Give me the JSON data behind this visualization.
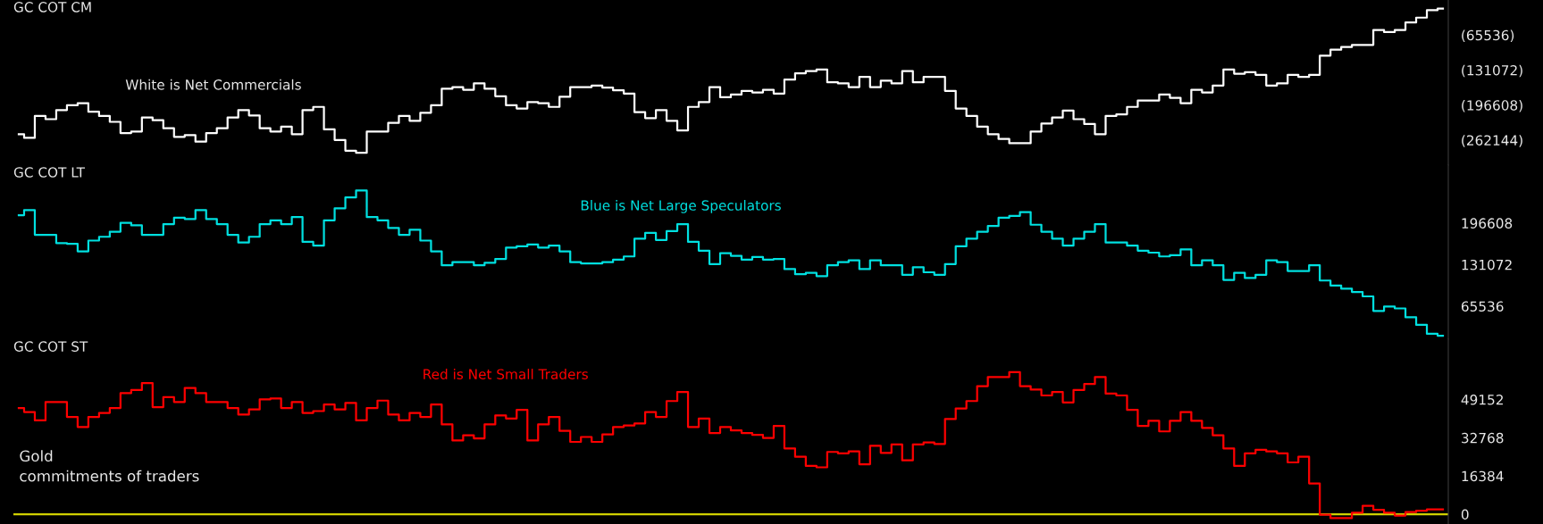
{
  "chart_data": [
    {
      "type": "step",
      "title": "GC COT CM",
      "annotations": [
        "White is Net Commercials"
      ],
      "tick_labels": "y",
      "ylim": [
        -309000,
        0
      ],
      "categories": [
        null,
        null,
        null,
        null,
        null,
        null,
        null,
        null,
        null,
        null,
        null,
        null,
        null,
        null,
        null,
        null,
        null,
        null,
        null,
        null,
        null,
        null,
        null,
        null,
        null,
        null,
        null,
        null,
        null,
        null,
        null,
        null,
        null,
        null,
        null,
        null,
        null,
        null,
        null,
        null,
        null,
        null,
        null,
        null,
        null,
        null,
        null,
        null,
        null,
        null,
        null,
        null,
        null,
        null,
        null,
        null,
        null,
        null,
        null,
        null,
        null,
        null,
        null,
        null,
        null,
        null,
        null,
        null,
        null,
        null,
        null,
        null,
        null,
        null,
        null,
        null,
        null,
        null,
        null,
        null,
        null,
        null,
        null,
        null,
        null,
        null,
        null,
        null,
        null,
        null,
        null,
        null,
        null,
        null,
        null,
        null,
        null,
        null,
        null,
        null,
        null,
        null,
        null,
        null,
        null,
        null,
        null,
        null,
        null,
        null,
        null,
        null,
        null,
        null,
        null,
        null,
        null,
        null,
        null,
        null,
        null,
        null,
        null,
        null,
        null,
        null,
        null,
        null,
        null,
        null,
        null,
        null,
        null,
        null
      ],
      "yticks": [
        {
          "value": -65536,
          "label": "(65536)"
        },
        {
          "value": -131072,
          "label": "(131072)"
        },
        {
          "value": -196608,
          "label": "(196608)"
        },
        {
          "value": -262144,
          "label": "(262144)"
        }
      ],
      "series": [
        {
          "color": "#ffffff",
          "values": [
            -251000,
            -258000,
            -217000,
            -223000,
            -206000,
            -197000,
            -193000,
            -209000,
            -217000,
            -228000,
            -249000,
            -246000,
            -220000,
            -225000,
            -240000,
            -256000,
            -253000,
            -265000,
            -249000,
            -240000,
            -220000,
            -206000,
            -216000,
            -240000,
            -246000,
            -237000,
            -251000,
            -206000,
            -200000,
            -242000,
            -262000,
            -282000,
            -286000,
            -246000,
            -246000,
            -230000,
            -217000,
            -226000,
            -211000,
            -197000,
            -166000,
            -163000,
            -168000,
            -156000,
            -166000,
            -180000,
            -197000,
            -203000,
            -191000,
            -193000,
            -200000,
            -181000,
            -163000,
            -163000,
            -160000,
            -164000,
            -169000,
            -175000,
            -210000,
            -221000,
            -206000,
            -226000,
            -244000,
            -200000,
            -191000,
            -163000,
            -182000,
            -177000,
            -170000,
            -173000,
            -168000,
            -175000,
            -149000,
            -137000,
            -133000,
            -130000,
            -154000,
            -156000,
            -163000,
            -144000,
            -163000,
            -151000,
            -156000,
            -133000,
            -154000,
            -144000,
            -144000,
            -170000,
            -203000,
            -217000,
            -237000,
            -251000,
            -260000,
            -268000,
            -268000,
            -246000,
            -231000,
            -220000,
            -207000,
            -223000,
            -232000,
            -251000,
            -217000,
            -214000,
            -200000,
            -188000,
            -188000,
            -177000,
            -183000,
            -193000,
            -168000,
            -173000,
            -160000,
            -130000,
            -138000,
            -135000,
            -140000,
            -160000,
            -156000,
            -140000,
            -144000,
            -140000,
            -104000,
            -93000,
            -88000,
            -84000,
            -84000,
            -56000,
            -60000,
            -56000,
            -42000,
            -33000,
            -19000,
            -16000
          ]
        }
      ]
    },
    {
      "type": "step",
      "title": "GC COT LT",
      "annotations": [
        "Blue is Net Large Speculators"
      ],
      "tick_labels": "y",
      "ylim": [
        13400,
        288000
      ],
      "categories": [
        null,
        null,
        null,
        null,
        null,
        null,
        null,
        null,
        null,
        null,
        null,
        null,
        null,
        null,
        null,
        null,
        null,
        null,
        null,
        null,
        null,
        null,
        null,
        null,
        null,
        null,
        null,
        null,
        null,
        null,
        null,
        null,
        null,
        null,
        null,
        null,
        null,
        null,
        null,
        null,
        null,
        null,
        null,
        null,
        null,
        null,
        null,
        null,
        null,
        null,
        null,
        null,
        null,
        null,
        null,
        null,
        null,
        null,
        null,
        null,
        null,
        null,
        null,
        null,
        null,
        null,
        null,
        null,
        null,
        null,
        null,
        null,
        null,
        null,
        null,
        null,
        null,
        null,
        null,
        null,
        null,
        null,
        null,
        null,
        null,
        null,
        null,
        null,
        null,
        null,
        null,
        null,
        null,
        null,
        null,
        null,
        null,
        null,
        null,
        null,
        null,
        null,
        null,
        null,
        null,
        null,
        null,
        null,
        null,
        null,
        null,
        null,
        null,
        null,
        null,
        null,
        null,
        null,
        null,
        null,
        null,
        null,
        null,
        null,
        null,
        null,
        null,
        null,
        null,
        null,
        null,
        null,
        null,
        null
      ],
      "yticks": [
        196608,
        131072,
        65536
      ],
      "series": [
        {
          "color": "#00e0e0",
          "values": [
            209000,
            217000,
            178000,
            178000,
            165000,
            164000,
            152000,
            169000,
            175000,
            183000,
            197000,
            193000,
            178000,
            178000,
            195000,
            205000,
            203000,
            217000,
            203000,
            195000,
            178000,
            166000,
            175000,
            195000,
            201000,
            195000,
            206000,
            167000,
            161000,
            201000,
            220000,
            237000,
            248000,
            206000,
            201000,
            189000,
            178000,
            186000,
            169000,
            152000,
            130000,
            135000,
            135000,
            130000,
            134000,
            140000,
            158000,
            160000,
            163000,
            158000,
            161000,
            152000,
            135000,
            133000,
            133000,
            135000,
            139000,
            144000,
            172000,
            181000,
            170000,
            184000,
            195000,
            167000,
            153000,
            132000,
            149000,
            145000,
            139000,
            143000,
            139000,
            140000,
            124000,
            116000,
            118000,
            113000,
            130000,
            135000,
            138000,
            124000,
            138000,
            130000,
            130000,
            115000,
            127000,
            119000,
            115000,
            132000,
            160000,
            172000,
            183000,
            192000,
            205000,
            208000,
            214000,
            194000,
            183000,
            172000,
            161000,
            172000,
            183000,
            195000,
            166000,
            166000,
            161000,
            153000,
            150000,
            144000,
            146000,
            155000,
            130000,
            138000,
            130000,
            107000,
            118000,
            110000,
            115000,
            138000,
            135000,
            121000,
            121000,
            130000,
            106000,
            98000,
            93000,
            88000,
            81000,
            58000,
            65000,
            62000,
            48000,
            36000,
            22000,
            19000
          ]
        }
      ]
    },
    {
      "type": "step",
      "title": "GC COT ST",
      "annotations": [
        "Red is Net Small Traders",
        "Gold\ncommitments of traders"
      ],
      "tick_labels": "y",
      "ylim": [
        -4200,
        75000
      ],
      "categories": [
        null,
        null,
        null,
        null,
        null,
        null,
        null,
        null,
        null,
        null,
        null,
        null,
        null,
        null,
        null,
        null,
        null,
        null,
        null,
        null,
        null,
        null,
        null,
        null,
        null,
        null,
        null,
        null,
        null,
        null,
        null,
        null,
        null,
        null,
        null,
        null,
        null,
        null,
        null,
        null,
        null,
        null,
        null,
        null,
        null,
        null,
        null,
        null,
        null,
        null,
        null,
        null,
        null,
        null,
        null,
        null,
        null,
        null,
        null,
        null,
        null,
        null,
        null,
        null,
        null,
        null,
        null,
        null,
        null,
        null,
        null,
        null,
        null,
        null,
        null,
        null,
        null,
        null,
        null,
        null,
        null,
        null,
        null,
        null,
        null,
        null,
        null,
        null,
        null,
        null,
        null,
        null,
        null,
        null,
        null,
        null,
        null,
        null,
        null,
        null,
        null,
        null,
        null,
        null,
        null,
        null,
        null,
        null,
        null,
        null,
        null,
        null,
        null,
        null,
        null,
        null,
        null,
        null,
        null,
        null,
        null,
        null,
        null,
        null,
        null,
        null,
        null,
        null,
        null,
        null,
        null,
        null,
        null,
        null
      ],
      "yticks": [
        49152,
        32768,
        16384,
        0
      ],
      "ref_lines": [
        {
          "axis": "y",
          "value": 0,
          "color": "#d0d000"
        }
      ],
      "series": [
        {
          "color": "#ff0000",
          "values": [
            45500,
            43800,
            40200,
            48100,
            48100,
            41700,
            37400,
            41700,
            43400,
            45500,
            51900,
            53200,
            56200,
            45900,
            50200,
            48100,
            54100,
            51900,
            48100,
            48100,
            45500,
            42700,
            44900,
            49200,
            49600,
            45500,
            48100,
            43400,
            44200,
            47000,
            44900,
            47700,
            40200,
            45500,
            48700,
            42700,
            40200,
            43400,
            41700,
            47000,
            38500,
            31600,
            33800,
            32500,
            38500,
            42300,
            41000,
            44700,
            31600,
            38500,
            41700,
            35700,
            31000,
            33100,
            31000,
            34200,
            37400,
            38000,
            38900,
            43800,
            41700,
            48500,
            52400,
            37400,
            41000,
            34800,
            37400,
            35900,
            34800,
            34000,
            32700,
            37800,
            28200,
            24600,
            20700,
            20100,
            26700,
            26100,
            26900,
            21400,
            29300,
            26300,
            29900,
            23100,
            29900,
            30800,
            30100,
            40800,
            45300,
            48500,
            54900,
            58800,
            58800,
            60900,
            54900,
            53400,
            50900,
            52400,
            47900,
            53200,
            55800,
            58800,
            51700,
            50900,
            44700,
            37800,
            40000,
            35500,
            40000,
            43800,
            40000,
            37000,
            33800,
            28200,
            20700,
            26100,
            27600,
            26900,
            26100,
            22200,
            24600,
            13200,
            -200,
            -1700,
            -1700,
            600,
            3600,
            1900,
            600,
            -600,
            900,
            1500,
            2100,
            2100
          ]
        }
      ]
    }
  ]
}
